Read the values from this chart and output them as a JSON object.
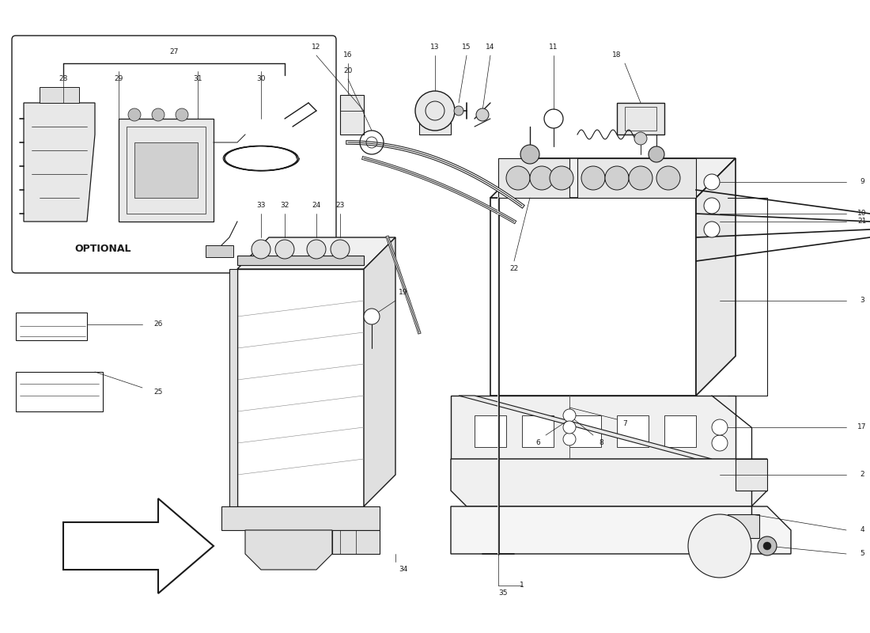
{
  "bg": "#ffffff",
  "lc": "#1a1a1a",
  "fig_w": 11.0,
  "fig_h": 8.0,
  "dpi": 100,
  "xlim": [
    0,
    110
  ],
  "ylim": [
    0,
    80
  ]
}
